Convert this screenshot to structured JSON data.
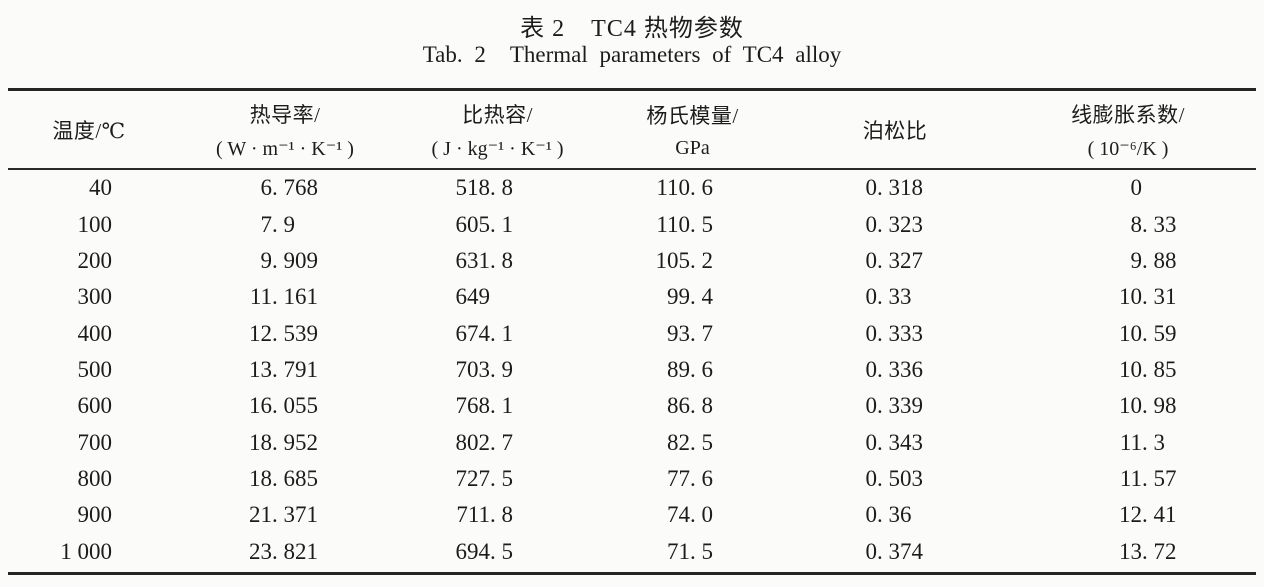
{
  "title": {
    "zh_label": "表 2",
    "zh_text": "TC4 热物参数",
    "en_label": "Tab. 2",
    "en_text": "Thermal parameters of TC4 alloy"
  },
  "table": {
    "columns": [
      {
        "line1": "温度/℃",
        "line2": ""
      },
      {
        "line1": "热导率/",
        "line2": "( W · m⁻¹ · K⁻¹ )"
      },
      {
        "line1": "比热容/",
        "line2": "( J · kg⁻¹ · K⁻¹ )"
      },
      {
        "line1": "杨氏模量/",
        "line2": "GPa"
      },
      {
        "line1": "泊松比",
        "line2": ""
      },
      {
        "line1": "线膨胀系数/",
        "line2": "( 10⁻⁶/K )"
      }
    ],
    "rows": [
      [
        "40",
        "6. 768",
        "518. 8",
        "110. 6",
        "0. 318",
        "0"
      ],
      [
        "100",
        "7. 9",
        "605. 1",
        "110. 5",
        "0. 323",
        "8. 33"
      ],
      [
        "200",
        "9. 909",
        "631. 8",
        "105. 2",
        "0. 327",
        "9. 88"
      ],
      [
        "300",
        "11. 161",
        "649",
        "99. 4",
        "0. 33",
        "10. 31"
      ],
      [
        "400",
        "12. 539",
        "674. 1",
        "93. 7",
        "0. 333",
        "10. 59"
      ],
      [
        "500",
        "13. 791",
        "703. 9",
        "89. 6",
        "0. 336",
        "10. 85"
      ],
      [
        "600",
        "16. 055",
        "768. 1",
        "86. 8",
        "0. 339",
        "10. 98"
      ],
      [
        "700",
        "18. 952",
        "802. 7",
        "82. 5",
        "0. 343",
        "11. 3"
      ],
      [
        "800",
        "18. 685",
        "727. 5",
        "77. 6",
        "0. 503",
        "11. 57"
      ],
      [
        "900",
        "21. 371",
        "711. 8",
        "74. 0",
        "0. 36",
        "12. 41"
      ],
      [
        "1 000",
        "23. 821",
        "694. 5",
        "71. 5",
        "0. 374",
        "13. 72"
      ]
    ]
  },
  "chart_data": {
    "type": "table",
    "title": "表 2 TC4 热物参数 / Tab. 2 Thermal parameters of TC4 alloy",
    "columns": [
      "温度/℃",
      "热导率/(W·m⁻¹·K⁻¹)",
      "比热容/(J·kg⁻¹·K⁻¹)",
      "杨氏模量/GPa",
      "泊松比",
      "线膨胀系数/(10⁻⁶/K)"
    ],
    "rows_numeric": [
      [
        40,
        6.768,
        518.8,
        110.6,
        0.318,
        0
      ],
      [
        100,
        7.9,
        605.1,
        110.5,
        0.323,
        8.33
      ],
      [
        200,
        9.909,
        631.8,
        105.2,
        0.327,
        9.88
      ],
      [
        300,
        11.161,
        649,
        99.4,
        0.33,
        10.31
      ],
      [
        400,
        12.539,
        674.1,
        93.7,
        0.333,
        10.59
      ],
      [
        500,
        13.791,
        703.9,
        89.6,
        0.336,
        10.85
      ],
      [
        600,
        16.055,
        768.1,
        86.8,
        0.339,
        10.98
      ],
      [
        700,
        18.952,
        802.7,
        82.5,
        0.343,
        11.3
      ],
      [
        800,
        18.685,
        727.5,
        77.6,
        0.503,
        11.57
      ],
      [
        900,
        21.371,
        711.8,
        74.0,
        0.36,
        12.41
      ],
      [
        1000,
        23.821,
        694.5,
        71.5,
        0.374,
        13.72
      ]
    ],
    "colors": {
      "text": "#1c1c1c",
      "rule": "#242424",
      "background": "#fbfbfa"
    }
  }
}
